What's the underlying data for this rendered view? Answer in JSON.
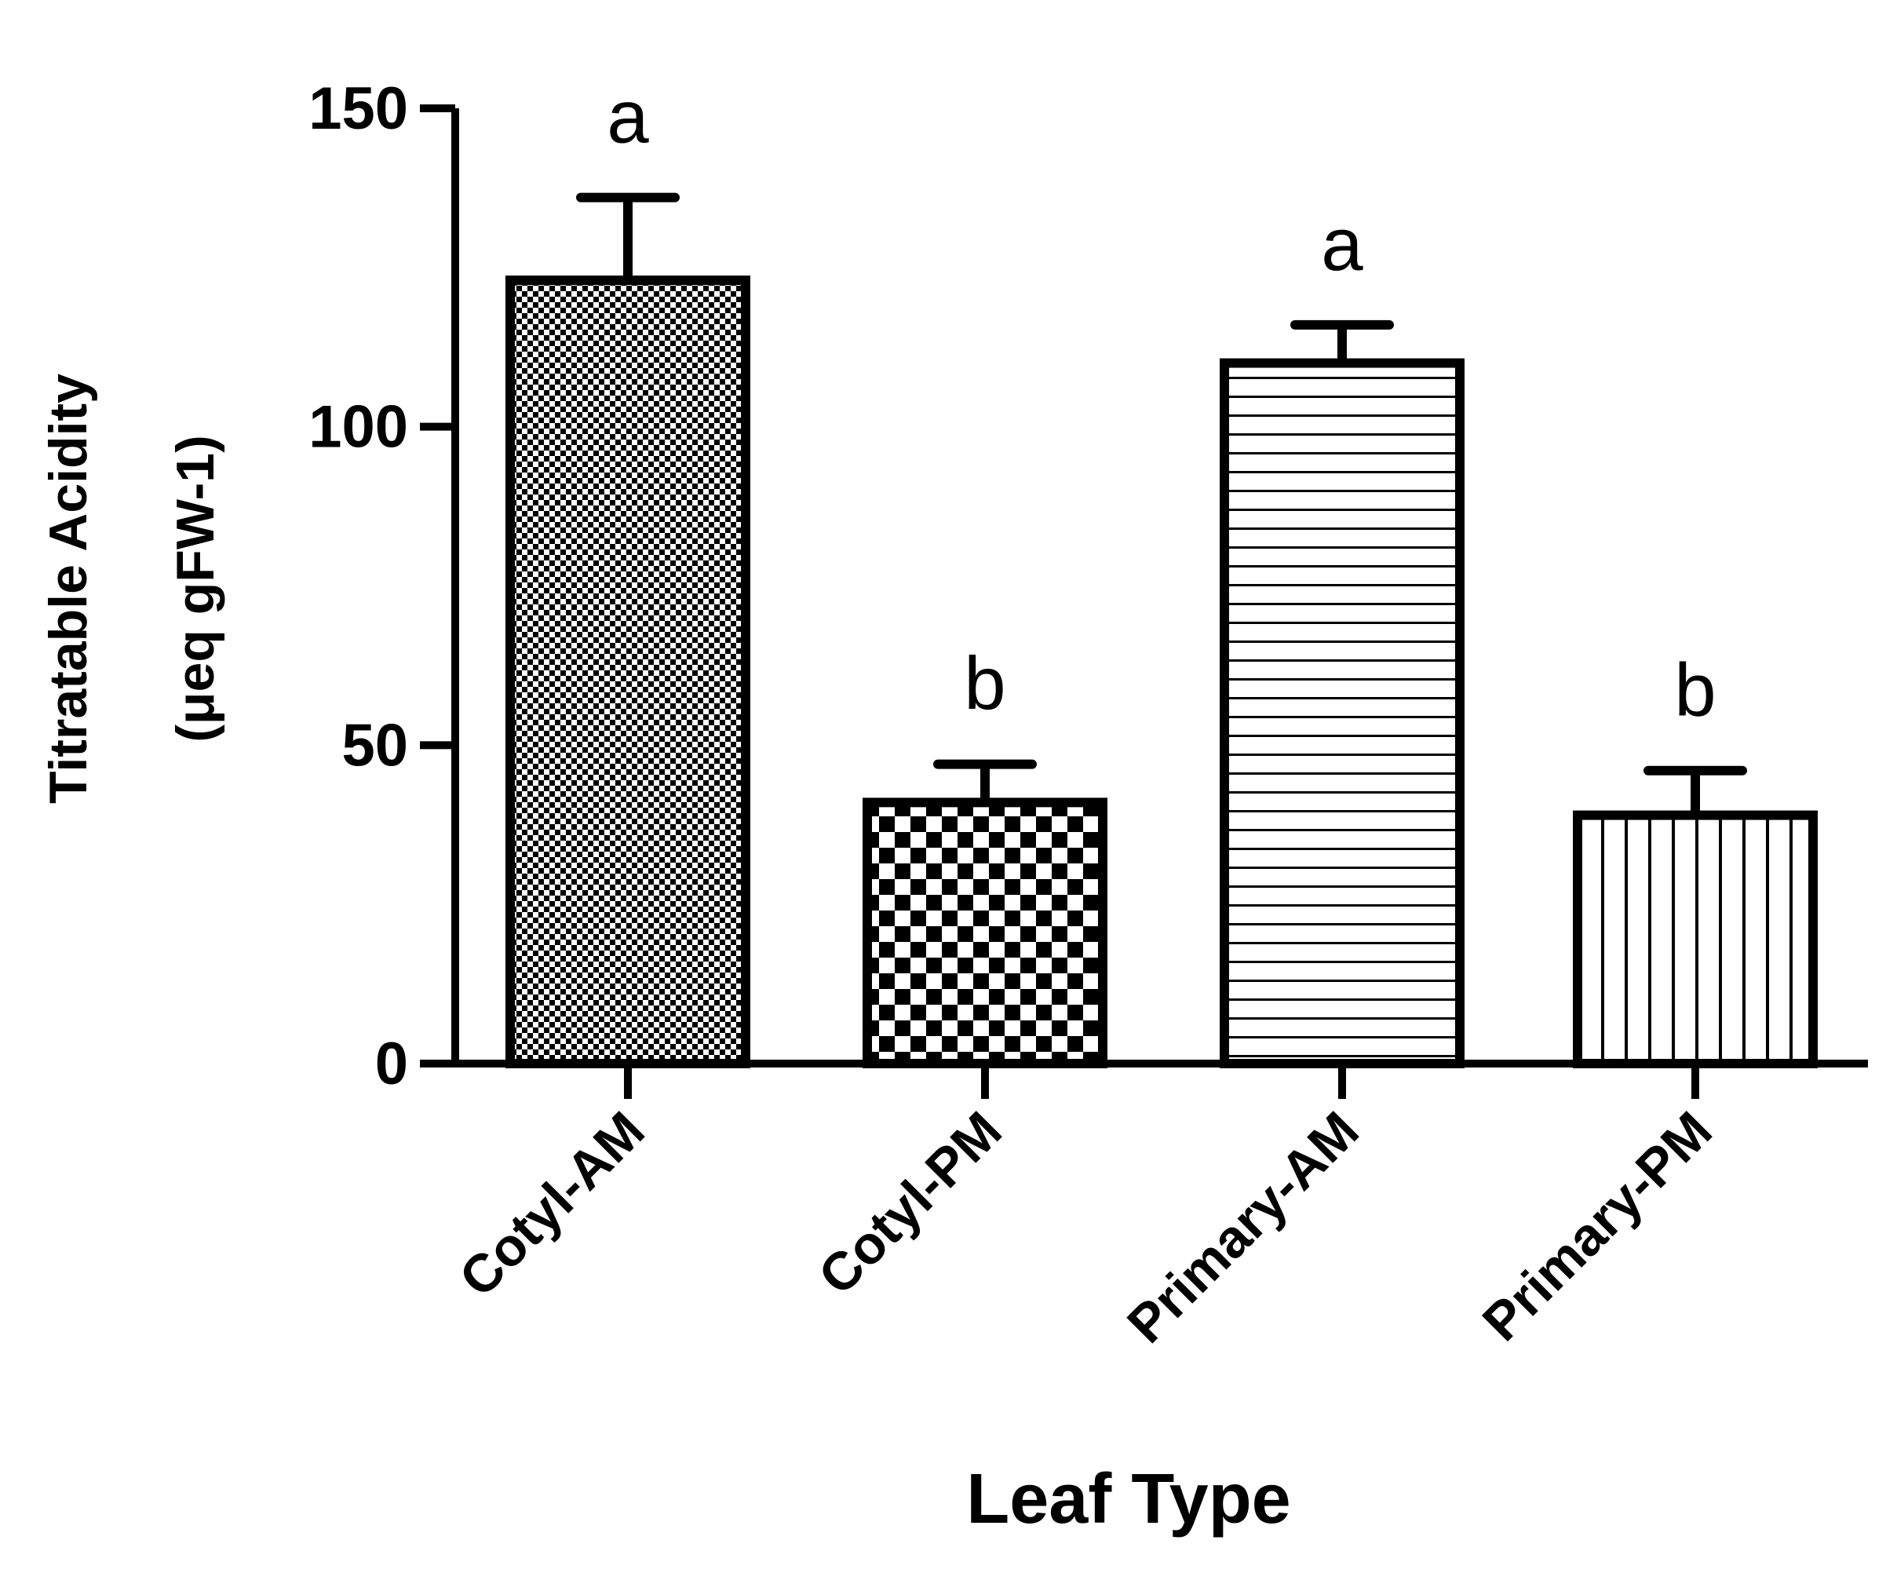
{
  "chart_data": {
    "type": "bar",
    "title": "",
    "xlabel": "Leaf Type",
    "ylabel_line1": "Titratable Acidity",
    "ylabel_line2": "(μeq gFW-1)",
    "ylim": [
      0,
      150
    ],
    "yticks": [
      0,
      50,
      100,
      150
    ],
    "categories": [
      "Cotyl-AM",
      "Cotyl-PM",
      "Primary-AM",
      "Primary-PM"
    ],
    "values": [
      123,
      41,
      110,
      39
    ],
    "errors": [
      13,
      6,
      6,
      7
    ],
    "significance": [
      "a",
      "b",
      "a",
      "b"
    ],
    "patterns": [
      "fine-checker",
      "coarse-checker",
      "horizontal-lines",
      "vertical-lines"
    ],
    "grid": false,
    "colors": {
      "bar_outline": "#000000",
      "fill": "#ffffff"
    }
  }
}
